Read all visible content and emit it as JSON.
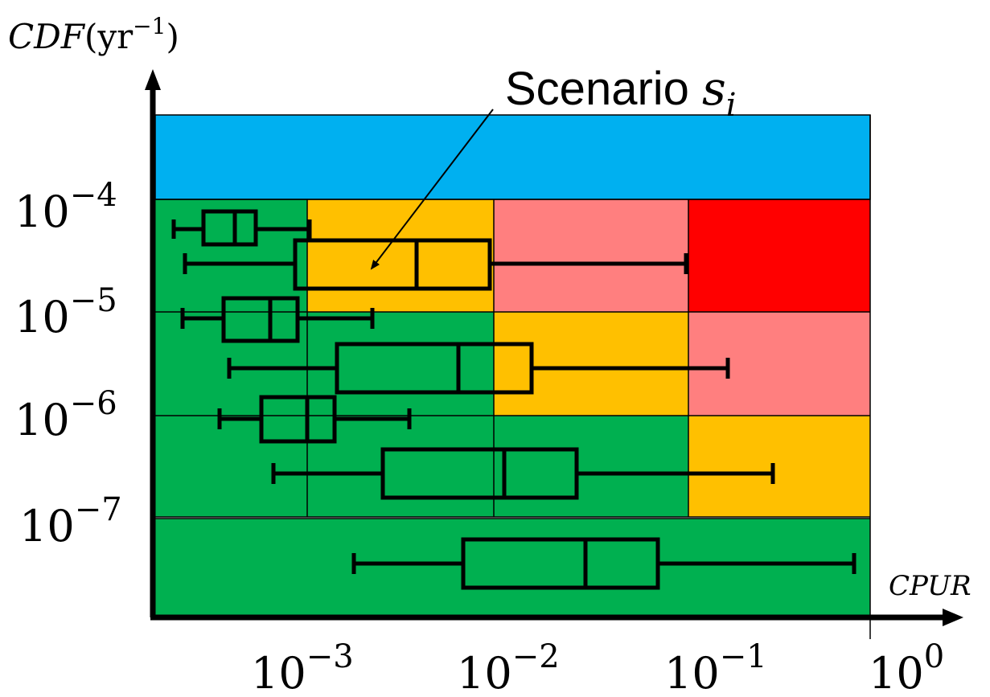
{
  "axis": {
    "y_label_base": "CDF",
    "y_label_open": "(yr",
    "y_label_exp": "−1",
    "y_label_close": ")",
    "x_label": "CPUR"
  },
  "y_ticks": [
    {
      "base": "10",
      "exp": "−4"
    },
    {
      "base": "10",
      "exp": "−5"
    },
    {
      "base": "10",
      "exp": "−6"
    },
    {
      "base": "10",
      "exp": "−7"
    }
  ],
  "x_ticks": [
    {
      "base": "10",
      "exp": "−3"
    },
    {
      "base": "10",
      "exp": "−2"
    },
    {
      "base": "10",
      "exp": "−1"
    },
    {
      "base": "10",
      "exp": "0"
    }
  ],
  "annotation": {
    "text": "Scenario ",
    "symbol": "s",
    "subscript": "i"
  },
  "colors": {
    "blue": "#00B0F0",
    "green": "#00B050",
    "yellow": "#FFC000",
    "pink": "#FF7F7F",
    "red": "#FF0000",
    "ink": "#000000"
  }
}
